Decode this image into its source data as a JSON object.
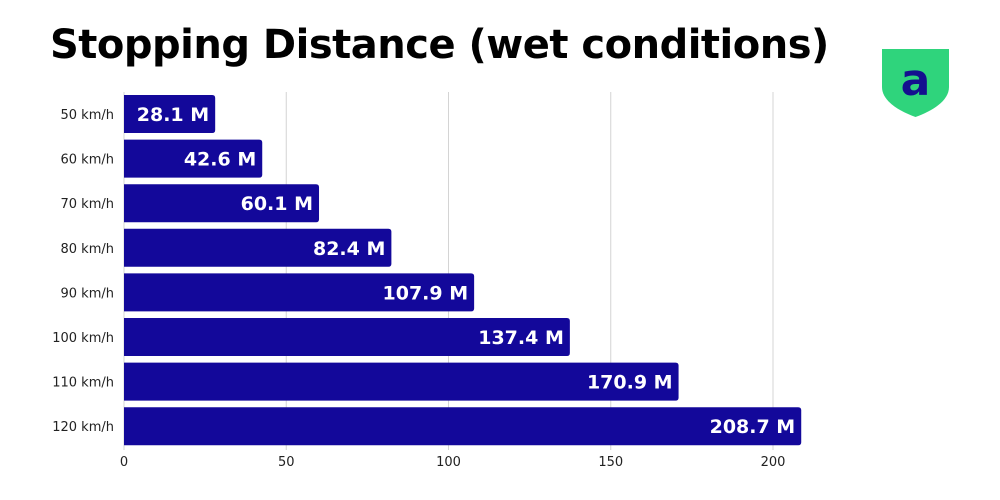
{
  "title": "Stopping Distance (wet conditions)",
  "logo_text": "a",
  "colors": {
    "bar": "#13089a",
    "grid": "#d4d4d4",
    "logo_green": "#2fd47c",
    "logo_letter": "#14108f"
  },
  "chart_data": {
    "type": "bar",
    "orientation": "horizontal",
    "title": "Stopping Distance (wet conditions)",
    "categories": [
      "50 km/h",
      "60 km/h",
      "70 km/h",
      "80 km/h",
      "90 km/h",
      "100 km/h",
      "110 km/h",
      "120 km/h"
    ],
    "values": [
      28.1,
      42.6,
      60.1,
      82.4,
      107.9,
      137.4,
      170.9,
      208.7
    ],
    "data_labels": [
      "28.1 M",
      "42.6 M",
      "60.1 M",
      "82.4 M",
      "107.9 M",
      "137.4 M",
      "170.9 M",
      "208.7 M"
    ],
    "xticks": [
      0,
      50,
      100,
      150,
      200
    ],
    "xlim": [
      0,
      200
    ],
    "xlabel": "",
    "ylabel": "",
    "grid": true
  }
}
